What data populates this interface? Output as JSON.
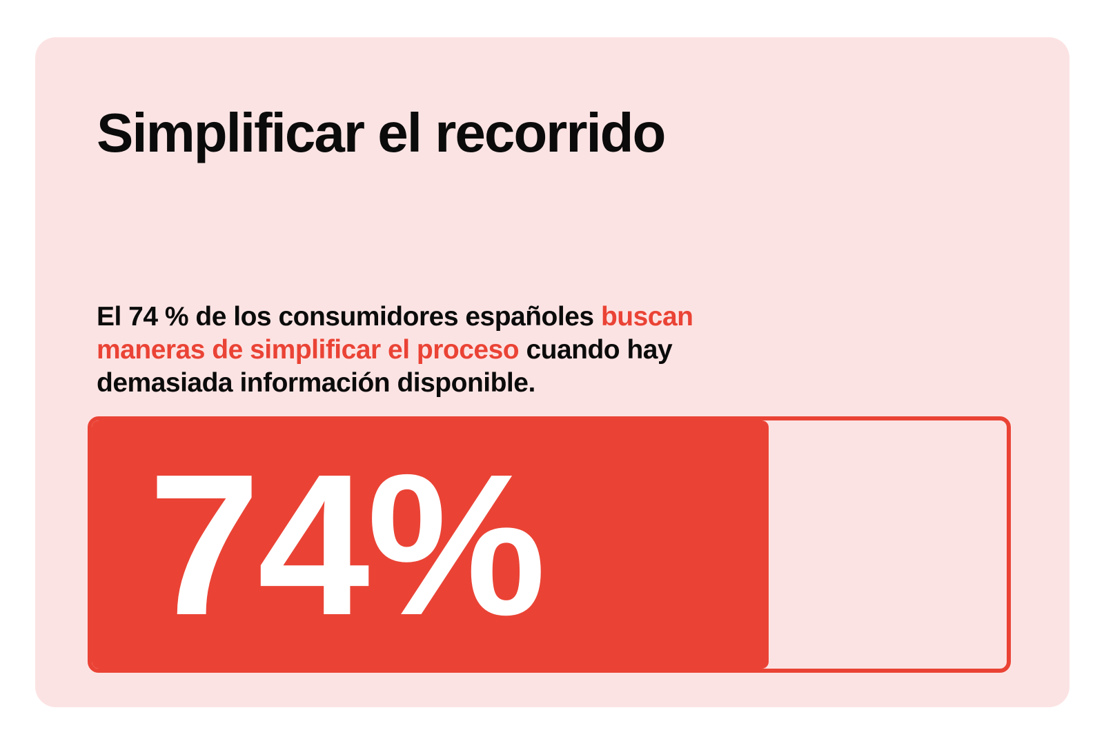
{
  "card": {
    "title": "Simplificar el recorrido",
    "description": {
      "part1": "El 74 % de los consumidores españoles ",
      "highlight": "buscan maneras de simplificar el proceso",
      "part2": " cuando hay demasiada información disponible."
    },
    "stat": {
      "label": "74%",
      "percent": 74
    }
  },
  "colors": {
    "background": "#fce3e3",
    "accent": "#ea4335",
    "text": "#0b0b0b",
    "stat_text": "#ffffff"
  }
}
